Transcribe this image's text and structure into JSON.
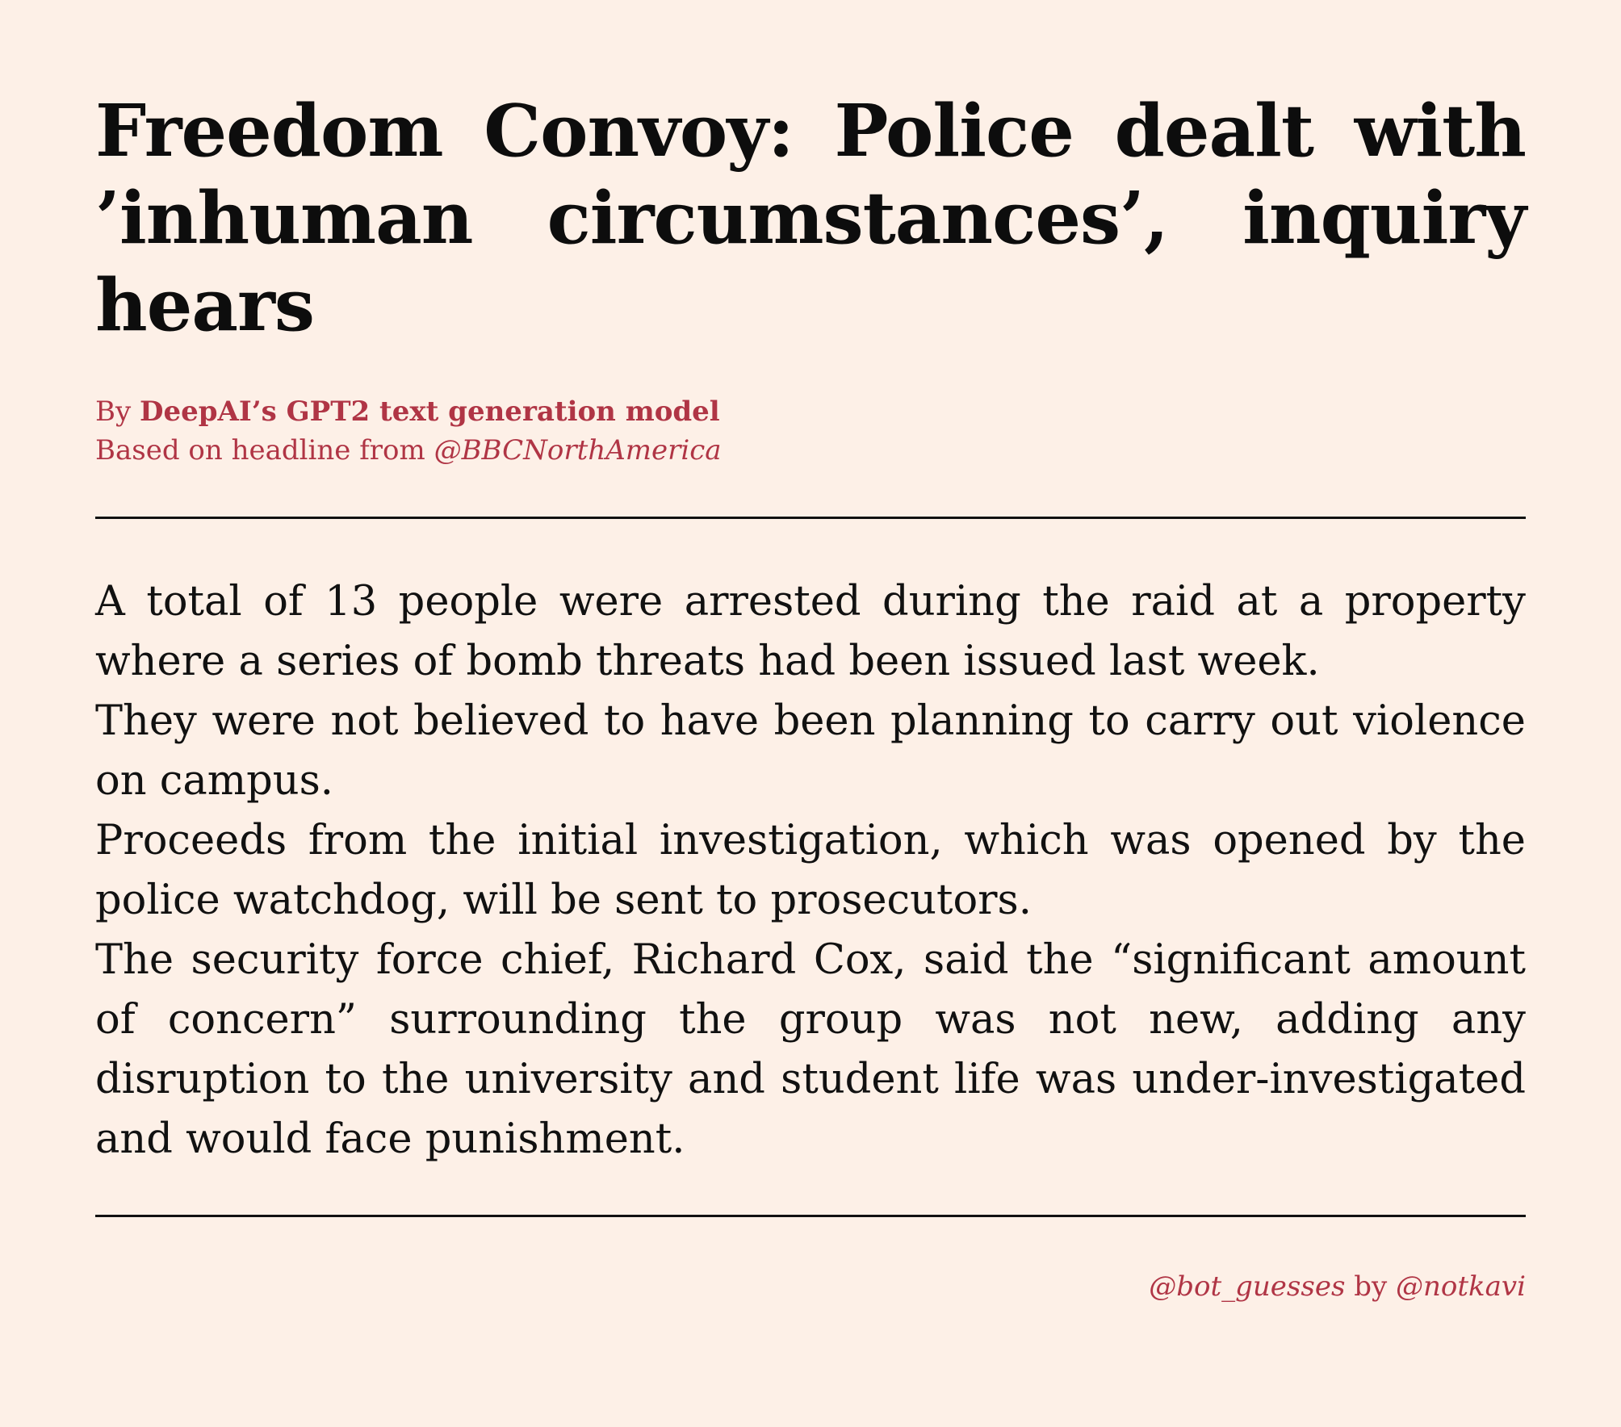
{
  "article": {
    "headline": "Freedom Convoy: Police dealt with ’inhuman circumstances’, inquiry hears",
    "byline_prefix": "By ",
    "byline_author": "DeepAI’s GPT2 text generation model",
    "source_prefix": "Based on headline from ",
    "source_handle": "@BBCNorthAmerica",
    "paragraphs": [
      "A total of 13 people were arrested during the raid at a property where a series of bomb threats had been issued last week.",
      "They were not believed to have been planning to carry out violence on campus.",
      "Proceeds from the initial investigation, which was opened by the police watchdog, will be sent to prosecutors.",
      "The security force chief, Richard Cox, said the “significant amount of concern” surrounding the group was not new, adding any disruption to the university and student life was under-investigated and would face punishment."
    ]
  },
  "footer": {
    "bot_handle": "@bot_guesses",
    "by_text": " by ",
    "author_handle": "@notkavi"
  },
  "colors": {
    "background": "#fdf0e7",
    "accent": "#b03545",
    "text": "#111111"
  }
}
